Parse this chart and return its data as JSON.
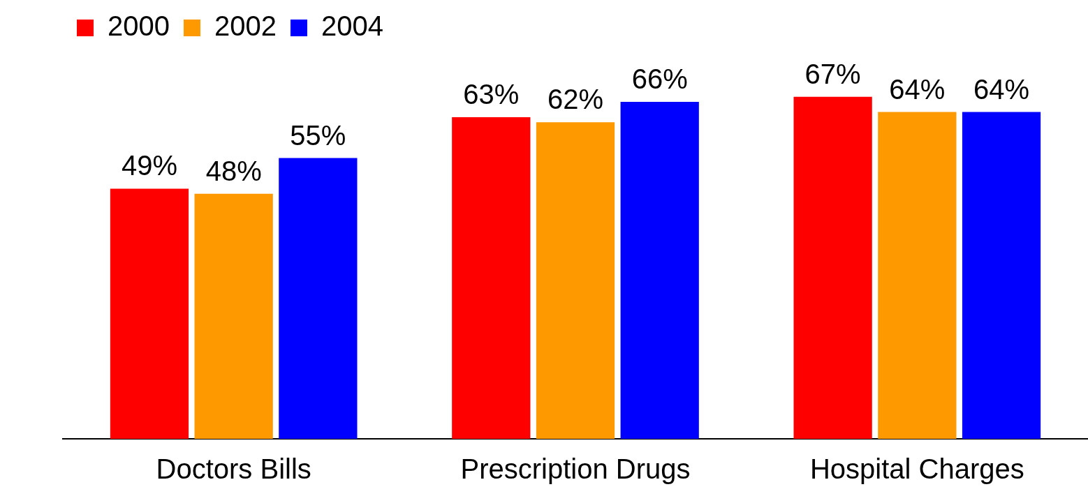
{
  "chart_data": {
    "type": "bar",
    "categories": [
      "Doctors Bills",
      "Prescription Drugs",
      "Hospital Charges"
    ],
    "series": [
      {
        "name": "2000",
        "color": "#ff0000",
        "values": [
          49,
          63,
          67
        ],
        "value_labels": [
          "49%",
          "63%",
          "67%"
        ]
      },
      {
        "name": "2002",
        "color": "#ff9900",
        "values": [
          48,
          62,
          64
        ],
        "value_labels": [
          "48%",
          "62%",
          "64%"
        ]
      },
      {
        "name": "2004",
        "color": "#0000ff",
        "values": [
          55,
          66,
          64
        ],
        "value_labels": [
          "55%",
          "66%",
          "64%"
        ]
      }
    ],
    "legend": "top left"
  }
}
